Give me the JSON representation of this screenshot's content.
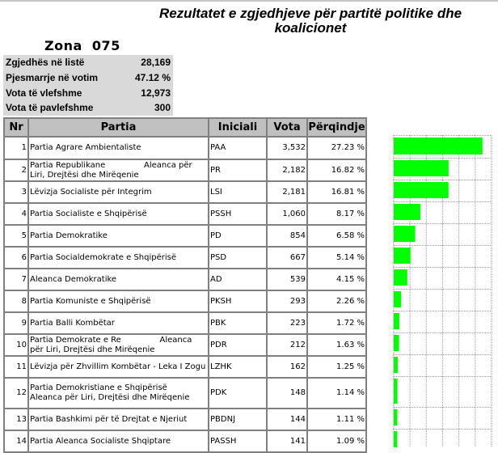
{
  "title": "Rezultatet e zgjedhjeve për partitë politike dhe koalicionet",
  "zona": "Zona  075",
  "stats": [
    {
      "label": "Zgjedhës në listë",
      "value": "28,169"
    },
    {
      "label": "Pjesmarrje në votim",
      "value": "47.12 %"
    },
    {
      "label": "Vota të vlefshme",
      "value": "12,973"
    },
    {
      "label": "Vota të pavlefshme",
      "value": "300"
    }
  ],
  "headers": {
    "nr": "Nr",
    "partia": "Partia",
    "iniciali": "Iniciali",
    "vota": "Vota",
    "perqindje": "Përqindje"
  },
  "rows": [
    {
      "nr": "1",
      "partia": "Partia Agrare Ambientaliste",
      "iniciali": "PAA",
      "vota": "3,532",
      "perqindje": "27.23 %",
      "pct": 27.23
    },
    {
      "nr": "2",
      "partia": "Partia Republikane               Aleanca për Liri, Drejtësi dhe Mirëqenie",
      "iniciali": "PR",
      "vota": "2,182",
      "perqindje": "16.82 %",
      "pct": 16.82
    },
    {
      "nr": "3",
      "partia": "Lëvizja Socialiste për Integrim",
      "iniciali": "LSI",
      "vota": "2,181",
      "perqindje": "16.81 %",
      "pct": 16.81
    },
    {
      "nr": "4",
      "partia": "Partia Socialiste e Shqipërisë",
      "iniciali": "PSSH",
      "vota": "1,060",
      "perqindje": "8.17 %",
      "pct": 8.17
    },
    {
      "nr": "5",
      "partia": "Partia Demokratike",
      "iniciali": "PD",
      "vota": "854",
      "perqindje": "6.58 %",
      "pct": 6.58
    },
    {
      "nr": "6",
      "partia": "Partia Socialdemokrate e Shqipërisë",
      "iniciali": "PSD",
      "vota": "667",
      "perqindje": "5.14 %",
      "pct": 5.14
    },
    {
      "nr": "7",
      "partia": "Aleanca Demokratike",
      "iniciali": "AD",
      "vota": "539",
      "perqindje": "4.15 %",
      "pct": 4.15
    },
    {
      "nr": "8",
      "partia": "Partia Komuniste e Shqipërisë",
      "iniciali": "PKSH",
      "vota": "293",
      "perqindje": "2.26 %",
      "pct": 2.26
    },
    {
      "nr": "9",
      "partia": "Partia Balli Kombëtar",
      "iniciali": "PBK",
      "vota": "223",
      "perqindje": "1.72 %",
      "pct": 1.72
    },
    {
      "nr": "10",
      "partia": "Partia Demokrate e Re               Aleanca për Liri, Drejtësi dhe Mirëqenie",
      "iniciali": "PDR",
      "vota": "212",
      "perqindje": "1.63 %",
      "pct": 1.63
    },
    {
      "nr": "11",
      "partia": "Lëvizja për Zhvillim Kombëtar - Leka I Zogu",
      "iniciali": "LZHK",
      "vota": "162",
      "perqindje": "1.25 %",
      "pct": 1.25
    },
    {
      "nr": "12",
      "partia": "Partia Demokristiane e Shqipërisë          Aleanca për Liri, Drejtësi dhe Mirëqenie",
      "iniciali": "PDK",
      "vota": "148",
      "perqindje": "1.14 %",
      "pct": 1.14
    },
    {
      "nr": "13",
      "partia": "Partia Bashkimi për të Drejtat e Njeriut",
      "iniciali": "PBDNJ",
      "vota": "144",
      "perqindje": "1.11 %",
      "pct": 1.11
    },
    {
      "nr": "14",
      "partia": "Partia Aleanca Socialiste Shqiptare",
      "iniciali": "PASSH",
      "vota": "141",
      "perqindje": "1.09 %",
      "pct": 1.09
    }
  ],
  "chart_data": {
    "type": "bar",
    "orientation": "horizontal",
    "categories": [
      "PAA",
      "PR",
      "LSI",
      "PSSH",
      "PD",
      "PSD",
      "AD",
      "PKSH",
      "PBK",
      "PDR",
      "LZHK",
      "PDK",
      "PBDNJ",
      "PASSH"
    ],
    "values": [
      27.23,
      16.82,
      16.81,
      8.17,
      6.58,
      5.14,
      4.15,
      2.26,
      1.72,
      1.63,
      1.25,
      1.14,
      1.11,
      1.09
    ],
    "xlim": [
      0,
      30
    ],
    "grid": true,
    "color": "#00ff00"
  }
}
